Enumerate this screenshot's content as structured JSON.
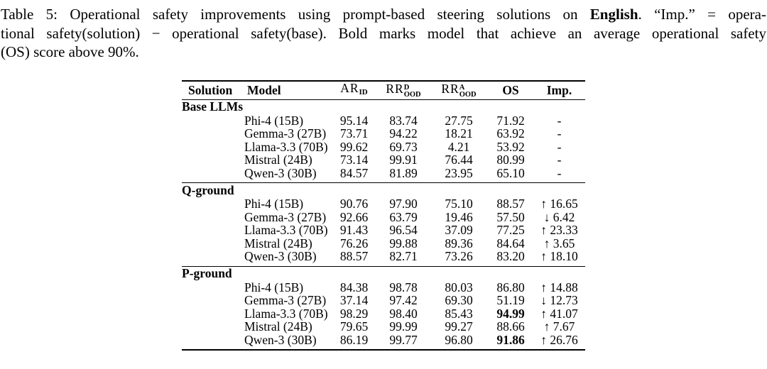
{
  "caption": {
    "line1_pre": "Table 5: Operational safety improvements using prompt-based steering solutions on ",
    "line1_bold": "English",
    "line1_post": ". “Imp.” = opera-",
    "line2": "tional safety(solution) − operational safety(base). Bold marks model that achieve an average operational safety",
    "line3": "(OS) score above 90%."
  },
  "table": {
    "columns": [
      {
        "label": "Solution"
      },
      {
        "label": "Model"
      },
      {
        "base": "AR",
        "sub": "ID"
      },
      {
        "base": "RR",
        "sup": "D",
        "sub": "OOD"
      },
      {
        "base": "RR",
        "sup": "A",
        "sub": "OOD"
      },
      {
        "label": "OS"
      },
      {
        "label": "Imp."
      }
    ],
    "sections": [
      {
        "solution": "Base LLMs",
        "rows": [
          {
            "model": "Phi-4 (15B)",
            "ar": "95.14",
            "rrd": "83.74",
            "rra": "27.75",
            "os": "71.92",
            "os_bold": false,
            "imp": "-"
          },
          {
            "model": "Gemma-3 (27B)",
            "ar": "73.71",
            "rrd": "94.22",
            "rra": "18.21",
            "os": "63.92",
            "os_bold": false,
            "imp": "-"
          },
          {
            "model": "Llama-3.3 (70B)",
            "ar": "99.62",
            "rrd": "69.73",
            "rra": "4.21",
            "os": "53.92",
            "os_bold": false,
            "imp": "-"
          },
          {
            "model": "Mistral (24B)",
            "ar": "73.14",
            "rrd": "99.91",
            "rra": "76.44",
            "os": "80.99",
            "os_bold": false,
            "imp": "-"
          },
          {
            "model": "Qwen-3 (30B)",
            "ar": "84.57",
            "rrd": "81.89",
            "rra": "23.95",
            "os": "65.10",
            "os_bold": false,
            "imp": "-"
          }
        ]
      },
      {
        "solution": "Q-ground",
        "rows": [
          {
            "model": "Phi-4 (15B)",
            "ar": "90.76",
            "rrd": "97.90",
            "rra": "75.10",
            "os": "88.57",
            "os_bold": false,
            "imp": "↑ 16.65"
          },
          {
            "model": "Gemma-3 (27B)",
            "ar": "92.66",
            "rrd": "63.79",
            "rra": "19.46",
            "os": "57.50",
            "os_bold": false,
            "imp": "↓ 6.42"
          },
          {
            "model": "Llama-3.3 (70B)",
            "ar": "91.43",
            "rrd": "96.54",
            "rra": "37.09",
            "os": "77.25",
            "os_bold": false,
            "imp": "↑ 23.33"
          },
          {
            "model": "Mistral (24B)",
            "ar": "76.26",
            "rrd": "99.88",
            "rra": "89.36",
            "os": "84.64",
            "os_bold": false,
            "imp": "↑ 3.65"
          },
          {
            "model": "Qwen-3 (30B)",
            "ar": "88.57",
            "rrd": "82.71",
            "rra": "73.26",
            "os": "83.20",
            "os_bold": false,
            "imp": "↑ 18.10"
          }
        ]
      },
      {
        "solution": "P-ground",
        "rows": [
          {
            "model": "Phi-4 (15B)",
            "ar": "84.38",
            "rrd": "98.78",
            "rra": "80.03",
            "os": "86.80",
            "os_bold": false,
            "imp": "↑ 14.88"
          },
          {
            "model": "Gemma-3 (27B)",
            "ar": "37.14",
            "rrd": "97.42",
            "rra": "69.30",
            "os": "51.19",
            "os_bold": false,
            "imp": "↓ 12.73"
          },
          {
            "model": "Llama-3.3 (70B)",
            "ar": "98.29",
            "rrd": "98.40",
            "rra": "85.43",
            "os": "94.99",
            "os_bold": true,
            "imp": "↑ 41.07"
          },
          {
            "model": "Mistral (24B)",
            "ar": "79.65",
            "rrd": "99.99",
            "rra": "99.27",
            "os": "88.66",
            "os_bold": false,
            "imp": "↑ 7.67"
          },
          {
            "model": "Qwen-3 (30B)",
            "ar": "86.19",
            "rrd": "99.77",
            "rra": "96.80",
            "os": "91.86",
            "os_bold": true,
            "imp": "↑ 26.76"
          }
        ]
      }
    ]
  }
}
